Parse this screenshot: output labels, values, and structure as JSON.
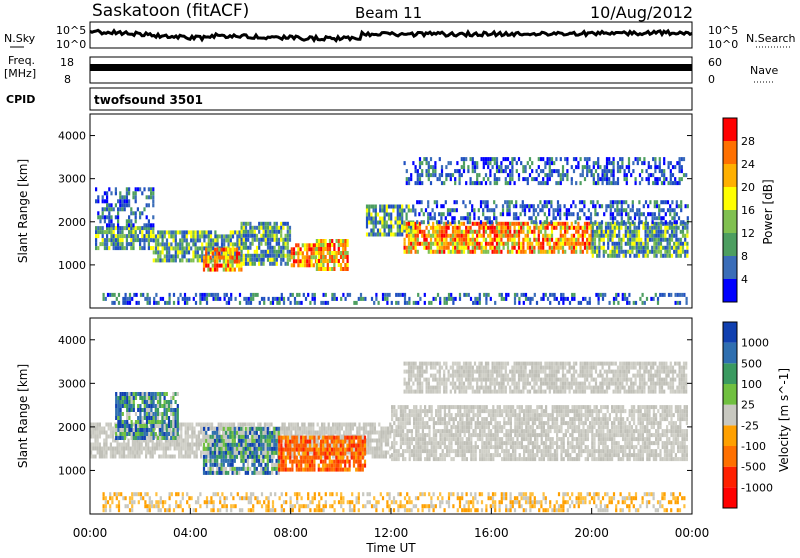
{
  "header": {
    "site": "Saskatoon (fitACF)",
    "beam": "Beam 11",
    "date": "10/Aug/2012"
  },
  "panels": {
    "nsky": {
      "label": "N.Sky",
      "tick_top": "10^5",
      "tick_bottom": "10^0"
    },
    "nsearch": {
      "label": "N.Search",
      "tick_top": "10^5",
      "tick_bottom": "10^0"
    },
    "freq": {
      "label": "Freq.",
      "unit": "[MHz]",
      "tick_top": "18",
      "tick_bottom": "8"
    },
    "nave": {
      "label": "Nave",
      "tick_top": "60",
      "tick_bottom": "0"
    },
    "cpid": {
      "label": "CPID",
      "value": "twofsound 3501"
    }
  },
  "chart_data": [
    {
      "type": "heatmap",
      "name": "power",
      "ylabel": "Slant Range [km]",
      "yticks": [
        "1000",
        "2000",
        "3000",
        "4000"
      ],
      "ylim": [
        0,
        4500
      ],
      "xlim": [
        0,
        24
      ],
      "colorbar": {
        "label": "Power [dB]",
        "ticks": [
          "4",
          "8",
          "12",
          "16",
          "20",
          "24",
          "28"
        ],
        "colors": [
          "#0000ff",
          "#3a6db8",
          "#4d9e60",
          "#80c050",
          "#ffff00",
          "#ffb000",
          "#ff7000",
          "#ff0000"
        ]
      },
      "bands": [
        {
          "x0": 0.2,
          "x1": 2.5,
          "y0": 1350,
          "y1": 1900,
          "level": "mid"
        },
        {
          "x0": 0.2,
          "x1": 2.5,
          "y0": 1900,
          "y1": 2800,
          "level": "low"
        },
        {
          "x0": 2.5,
          "x1": 6.0,
          "y0": 1100,
          "y1": 1800,
          "level": "mid"
        },
        {
          "x0": 4.5,
          "x1": 6.0,
          "y0": 900,
          "y1": 1400,
          "level": "high"
        },
        {
          "x0": 6.0,
          "x1": 8.0,
          "y0": 1000,
          "y1": 2000,
          "level": "mid"
        },
        {
          "x0": 8.0,
          "x1": 9.0,
          "y0": 1000,
          "y1": 1500,
          "level": "high"
        },
        {
          "x0": 9.0,
          "x1": 10.3,
          "y0": 900,
          "y1": 1600,
          "level": "high"
        },
        {
          "x0": 11.0,
          "x1": 13.0,
          "y0": 1700,
          "y1": 2400,
          "level": "mid"
        },
        {
          "x0": 12.5,
          "x1": 20.0,
          "y0": 1300,
          "y1": 2000,
          "level": "high"
        },
        {
          "x0": 20.0,
          "x1": 23.8,
          "y0": 1200,
          "y1": 2000,
          "level": "mid"
        },
        {
          "x0": 13.0,
          "x1": 23.8,
          "y0": 2000,
          "y1": 2500,
          "level": "low"
        },
        {
          "x0": 12.5,
          "x1": 23.8,
          "y0": 2900,
          "y1": 3500,
          "level": "low"
        },
        {
          "x0": 0.5,
          "x1": 23.8,
          "y0": 150,
          "y1": 350,
          "level": "low"
        }
      ]
    },
    {
      "type": "heatmap",
      "name": "velocity",
      "ylabel": "Slant Range [km]",
      "yticks": [
        "1000",
        "2000",
        "3000",
        "4000"
      ],
      "ylim": [
        0,
        4500
      ],
      "xlim": [
        0,
        24
      ],
      "xlabel": "Time UT",
      "xticks": [
        "00:00",
        "04:00",
        "08:00",
        "12:00",
        "16:00",
        "20:00",
        "00:00"
      ],
      "colorbar": {
        "label": "Velocity [m s^-1]",
        "ticks": [
          "1000",
          "500",
          "100",
          "25",
          "-25",
          "-100",
          "-500",
          "-1000"
        ],
        "colors": [
          "#1040b0",
          "#2f6fb0",
          "#3a9a60",
          "#70c040",
          "#c8c8c0",
          "#ffa000",
          "#ff7000",
          "#ff2000",
          "#ff0000"
        ]
      },
      "bands": [
        {
          "x0": 0.0,
          "x1": 12.0,
          "y0": 1300,
          "y1": 2100,
          "level": "grey"
        },
        {
          "x0": 12.0,
          "x1": 23.8,
          "y0": 1300,
          "y1": 2500,
          "level": "grey"
        },
        {
          "x0": 12.5,
          "x1": 23.8,
          "y0": 2800,
          "y1": 3500,
          "level": "grey"
        },
        {
          "x0": 4.5,
          "x1": 7.5,
          "y0": 900,
          "y1": 2000,
          "level": "pos"
        },
        {
          "x0": 7.5,
          "x1": 11.0,
          "y0": 1000,
          "y1": 1800,
          "level": "neg"
        },
        {
          "x0": 1.0,
          "x1": 3.5,
          "y0": 1700,
          "y1": 2800,
          "level": "pos"
        },
        {
          "x0": 0.5,
          "x1": 23.8,
          "y0": 100,
          "y1": 500,
          "level": "neg_light"
        }
      ]
    }
  ]
}
